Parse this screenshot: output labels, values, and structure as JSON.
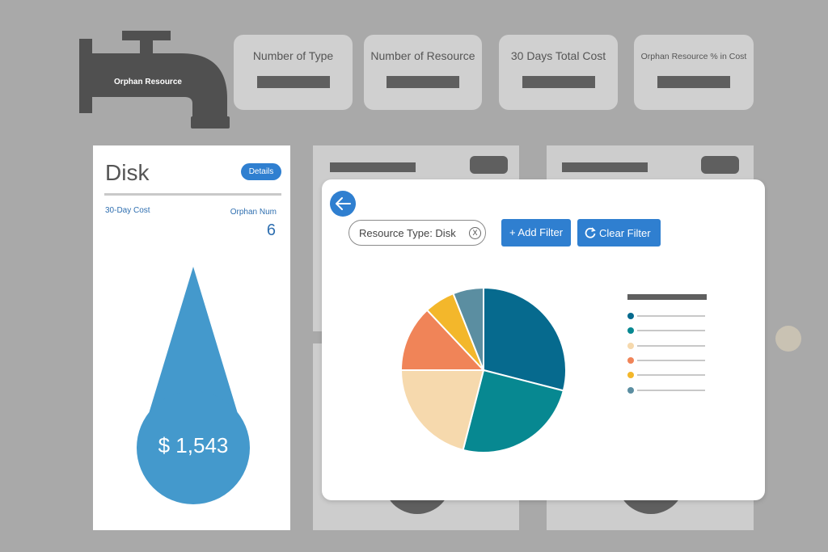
{
  "logo": {
    "label": "Orphan Resource",
    "icon": "faucet-icon"
  },
  "kpis": [
    {
      "title": "Number of Type"
    },
    {
      "title": "Number of Resource"
    },
    {
      "title": "30 Days Total Cost"
    },
    {
      "title": "Orphan Resource % in Cost"
    }
  ],
  "disk_card": {
    "title": "Disk",
    "details_label": "Details",
    "cost_label": "30-Day Cost",
    "orphan_label": "Orphan Num",
    "orphan_value": "6",
    "cost_value": "$ 1,543",
    "drop_color": "#4499cc"
  },
  "modal": {
    "back_icon": "arrow-left-icon",
    "filter_chip": {
      "label": "Resource Type: Disk",
      "close": "X"
    },
    "add_filter_label": "+ Add Filter",
    "clear_filter_label": "Clear Filter",
    "clear_icon": "refresh-icon"
  },
  "chart_data": {
    "type": "pie",
    "values": [
      29,
      25,
      21,
      13,
      6,
      6
    ],
    "colors": [
      "#066a8e",
      "#078891",
      "#f6d9ad",
      "#f08458",
      "#f3b72b",
      "#5b8ea1"
    ]
  },
  "colors": {
    "accent": "#2f7fd0",
    "background": "#a9a9a9"
  }
}
